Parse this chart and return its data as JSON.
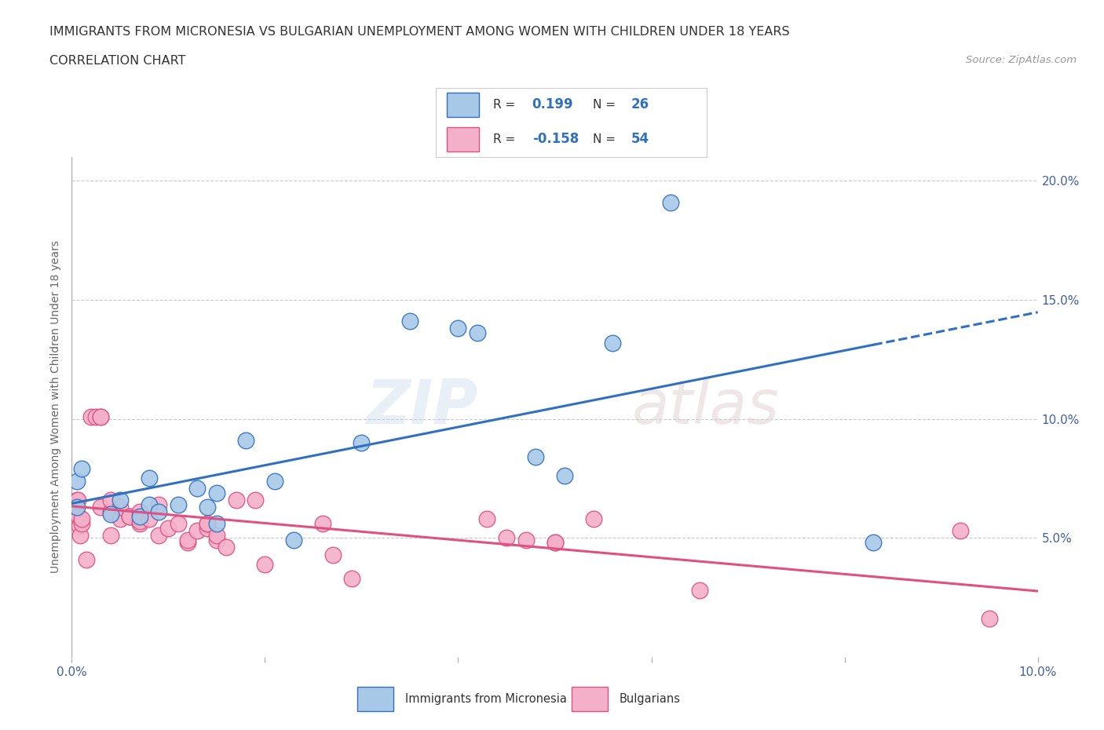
{
  "title_line1": "IMMIGRANTS FROM MICRONESIA VS BULGARIAN UNEMPLOYMENT AMONG WOMEN WITH CHILDREN UNDER 18 YEARS",
  "title_line2": "CORRELATION CHART",
  "source_text": "Source: ZipAtlas.com",
  "ylabel": "Unemployment Among Women with Children Under 18 years",
  "xlim": [
    0.0,
    0.1
  ],
  "ylim": [
    0.0,
    0.21
  ],
  "xticks": [
    0.0,
    0.02,
    0.04,
    0.06,
    0.08,
    0.1
  ],
  "yticks": [
    0.0,
    0.05,
    0.1,
    0.15,
    0.2
  ],
  "ytick_labels_right": [
    "",
    "5.0%",
    "10.0%",
    "15.0%",
    "20.0%"
  ],
  "blue_color": "#a8c8e8",
  "pink_color": "#f4b0c8",
  "blue_line_color": "#3070c0",
  "pink_line_color": "#e05080",
  "legend_label_blue": "Immigrants from Micronesia",
  "legend_label_pink": "Bulgarians",
  "blue_points_x": [
    0.0005,
    0.0005,
    0.001,
    0.004,
    0.005,
    0.007,
    0.008,
    0.008,
    0.009,
    0.011,
    0.013,
    0.014,
    0.015,
    0.015,
    0.018,
    0.021,
    0.023,
    0.03,
    0.035,
    0.04,
    0.042,
    0.048,
    0.051,
    0.056,
    0.062,
    0.083
  ],
  "blue_points_y": [
    0.063,
    0.074,
    0.079,
    0.06,
    0.066,
    0.059,
    0.064,
    0.075,
    0.061,
    0.064,
    0.071,
    0.063,
    0.069,
    0.056,
    0.091,
    0.074,
    0.049,
    0.09,
    0.141,
    0.138,
    0.136,
    0.084,
    0.076,
    0.132,
    0.191,
    0.048
  ],
  "pink_points_x": [
    0.0003,
    0.0004,
    0.0005,
    0.0006,
    0.0007,
    0.0008,
    0.0009,
    0.001,
    0.001,
    0.0015,
    0.002,
    0.0025,
    0.003,
    0.003,
    0.003,
    0.004,
    0.004,
    0.004,
    0.005,
    0.005,
    0.006,
    0.006,
    0.007,
    0.007,
    0.007,
    0.008,
    0.009,
    0.009,
    0.01,
    0.011,
    0.012,
    0.012,
    0.013,
    0.014,
    0.014,
    0.014,
    0.015,
    0.015,
    0.016,
    0.017,
    0.019,
    0.02,
    0.026,
    0.027,
    0.029,
    0.043,
    0.045,
    0.047,
    0.05,
    0.05,
    0.054,
    0.065,
    0.092,
    0.095
  ],
  "pink_points_y": [
    0.061,
    0.063,
    0.066,
    0.066,
    0.059,
    0.055,
    0.051,
    0.056,
    0.058,
    0.041,
    0.101,
    0.101,
    0.101,
    0.101,
    0.063,
    0.051,
    0.061,
    0.066,
    0.058,
    0.063,
    0.059,
    0.059,
    0.056,
    0.061,
    0.057,
    0.058,
    0.064,
    0.051,
    0.054,
    0.056,
    0.048,
    0.049,
    0.053,
    0.054,
    0.056,
    0.056,
    0.049,
    0.051,
    0.046,
    0.066,
    0.066,
    0.039,
    0.056,
    0.043,
    0.033,
    0.058,
    0.05,
    0.049,
    0.048,
    0.048,
    0.058,
    0.028,
    0.053,
    0.016
  ],
  "watermark_zip": "ZIP",
  "watermark_atlas": "atlas",
  "bg_color": "#ffffff",
  "grid_color": "#cccccc",
  "tick_color": "#4060a0",
  "text_color": "#333333",
  "label_color": "#666666"
}
